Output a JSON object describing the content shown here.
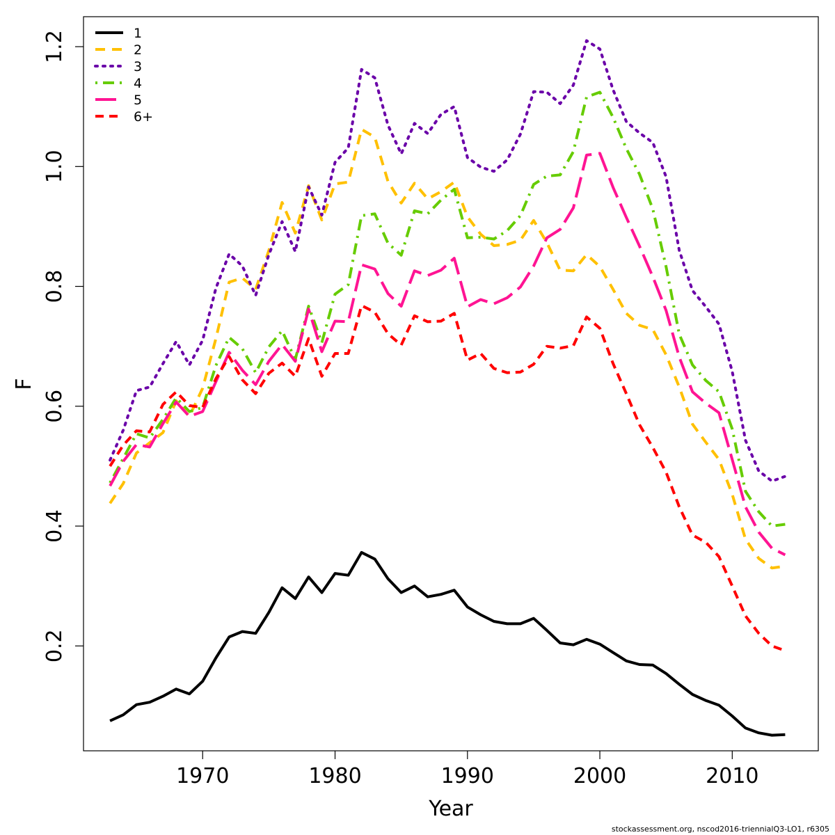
{
  "footer": "stockassessment.org, nscod2016-triennialQ3-LO1, r6305",
  "chart_data": {
    "type": "line",
    "xlabel": "Year",
    "ylabel": "F",
    "xlim": [
      1961,
      2016.5
    ],
    "ylim": [
      0.025,
      1.25
    ],
    "xticks": [
      1970,
      1980,
      1990,
      2000,
      2010
    ],
    "yticks": [
      0.2,
      0.4,
      0.6,
      0.8,
      1.0,
      1.2
    ],
    "ytick_labels": [
      "0.2",
      "0.4",
      "0.6",
      "0.8",
      "1.0",
      "1.2"
    ],
    "grid": false,
    "legend_position": "top-left",
    "x": [
      1963,
      1964,
      1965,
      1966,
      1967,
      1968,
      1969,
      1970,
      1971,
      1972,
      1973,
      1974,
      1975,
      1976,
      1977,
      1978,
      1979,
      1980,
      1981,
      1982,
      1983,
      1984,
      1985,
      1986,
      1987,
      1988,
      1989,
      1990,
      1991,
      1992,
      1993,
      1994,
      1995,
      1996,
      1997,
      1998,
      1999,
      2000,
      2001,
      2002,
      2003,
      2004,
      2005,
      2006,
      2007,
      2008,
      2009,
      2010,
      2011,
      2012,
      2013,
      2014
    ],
    "series": [
      {
        "name": "1",
        "color": "#000000",
        "dash": "solid",
        "values": [
          0.075,
          0.085,
          0.102,
          0.106,
          0.116,
          0.128,
          0.12,
          0.141,
          0.18,
          0.215,
          0.224,
          0.221,
          0.256,
          0.297,
          0.279,
          0.315,
          0.289,
          0.321,
          0.318,
          0.356,
          0.345,
          0.312,
          0.289,
          0.3,
          0.282,
          0.286,
          0.293,
          0.265,
          0.252,
          0.241,
          0.237,
          0.237,
          0.246,
          0.226,
          0.205,
          0.202,
          0.211,
          0.203,
          0.189,
          0.175,
          0.169,
          0.168,
          0.154,
          0.136,
          0.119,
          0.109,
          0.101,
          0.083,
          0.063,
          0.055,
          0.051,
          0.052
        ]
      },
      {
        "name": "2",
        "color": "#FFC000",
        "dash": "dashed",
        "values": [
          0.438,
          0.471,
          0.522,
          0.539,
          0.556,
          0.609,
          0.583,
          0.63,
          0.713,
          0.807,
          0.814,
          0.795,
          0.86,
          0.94,
          0.889,
          0.968,
          0.911,
          0.971,
          0.974,
          1.062,
          1.049,
          0.975,
          0.939,
          0.972,
          0.946,
          0.958,
          0.974,
          0.916,
          0.887,
          0.868,
          0.87,
          0.877,
          0.91,
          0.873,
          0.827,
          0.826,
          0.853,
          0.833,
          0.795,
          0.755,
          0.735,
          0.728,
          0.686,
          0.632,
          0.57,
          0.54,
          0.511,
          0.453,
          0.378,
          0.346,
          0.33,
          0.333
        ]
      },
      {
        "name": "3",
        "color": "#6A00A8",
        "dash": "dotted",
        "values": [
          0.51,
          0.56,
          0.626,
          0.632,
          0.671,
          0.708,
          0.669,
          0.71,
          0.797,
          0.854,
          0.834,
          0.785,
          0.853,
          0.908,
          0.858,
          0.966,
          0.919,
          1.007,
          1.031,
          1.162,
          1.148,
          1.069,
          1.021,
          1.072,
          1.055,
          1.087,
          1.1,
          1.015,
          0.999,
          0.992,
          1.011,
          1.054,
          1.125,
          1.124,
          1.105,
          1.136,
          1.21,
          1.196,
          1.128,
          1.075,
          1.056,
          1.04,
          0.983,
          0.86,
          0.793,
          0.766,
          0.737,
          0.658,
          0.543,
          0.492,
          0.475,
          0.483
        ]
      },
      {
        "name": "4",
        "color": "#66CC00",
        "dash": "dashdot",
        "values": [
          0.472,
          0.513,
          0.554,
          0.547,
          0.578,
          0.614,
          0.591,
          0.598,
          0.668,
          0.715,
          0.696,
          0.656,
          0.699,
          0.726,
          0.678,
          0.767,
          0.706,
          0.787,
          0.803,
          0.918,
          0.921,
          0.872,
          0.852,
          0.926,
          0.921,
          0.944,
          0.962,
          0.881,
          0.882,
          0.879,
          0.893,
          0.918,
          0.97,
          0.984,
          0.986,
          1.025,
          1.116,
          1.124,
          1.082,
          1.03,
          0.987,
          0.929,
          0.833,
          0.72,
          0.669,
          0.643,
          0.624,
          0.562,
          0.458,
          0.424,
          0.4,
          0.403
        ]
      },
      {
        "name": "5",
        "color": "#FF1493",
        "dash": "longdash",
        "values": [
          0.467,
          0.508,
          0.536,
          0.532,
          0.571,
          0.607,
          0.583,
          0.591,
          0.641,
          0.69,
          0.66,
          0.636,
          0.675,
          0.703,
          0.675,
          0.762,
          0.691,
          0.742,
          0.741,
          0.836,
          0.829,
          0.788,
          0.767,
          0.826,
          0.818,
          0.827,
          0.847,
          0.766,
          0.778,
          0.771,
          0.781,
          0.799,
          0.834,
          0.881,
          0.895,
          0.931,
          1.019,
          1.022,
          0.965,
          0.915,
          0.867,
          0.816,
          0.76,
          0.682,
          0.624,
          0.605,
          0.589,
          0.511,
          0.432,
          0.39,
          0.363,
          0.352
        ]
      },
      {
        "name": "6+",
        "color": "#FF0000",
        "dash": "shortdash",
        "values": [
          0.5,
          0.535,
          0.559,
          0.557,
          0.603,
          0.624,
          0.601,
          0.598,
          0.646,
          0.683,
          0.644,
          0.621,
          0.655,
          0.672,
          0.65,
          0.713,
          0.65,
          0.688,
          0.688,
          0.768,
          0.757,
          0.721,
          0.702,
          0.751,
          0.741,
          0.742,
          0.755,
          0.677,
          0.688,
          0.663,
          0.656,
          0.657,
          0.67,
          0.7,
          0.697,
          0.701,
          0.749,
          0.73,
          0.671,
          0.621,
          0.569,
          0.531,
          0.49,
          0.432,
          0.385,
          0.373,
          0.349,
          0.3,
          0.25,
          0.221,
          0.2,
          0.192
        ]
      }
    ]
  }
}
